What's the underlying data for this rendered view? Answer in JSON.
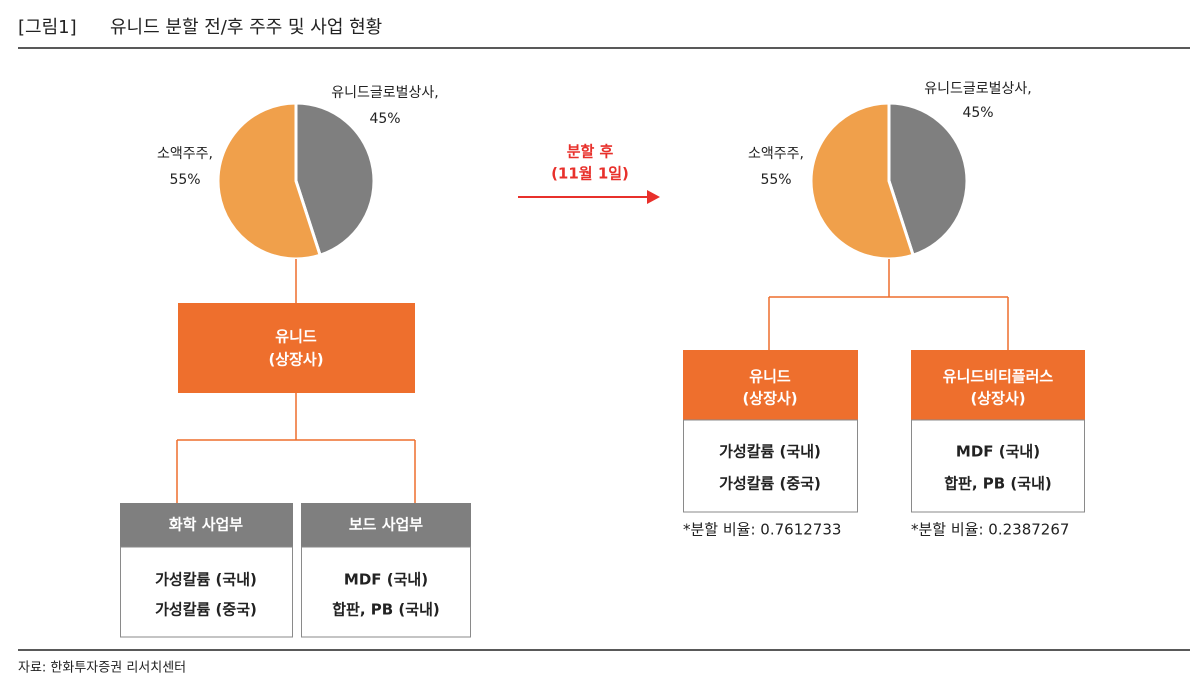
{
  "header": {
    "label": "[그림1]",
    "title": "유니드 분할 전/후 주주 및 사업 현황"
  },
  "before": {
    "pie": {
      "type": "pie",
      "names": [
        "유니드글로벌상사,",
        "소액주주,"
      ],
      "values": [
        45,
        55
      ],
      "value_labels": [
        "45%",
        "55%"
      ],
      "colors": [
        "#7f7f7f",
        "#f0a04b"
      ]
    },
    "company": {
      "name": "유니드",
      "status": "(상장사)"
    },
    "divisions": [
      {
        "name": "화학 사업부",
        "items": [
          "가성칼륨 (국내)",
          "가성칼륨 (중국)"
        ]
      },
      {
        "name": "보드 사업부",
        "items": [
          "MDF (국내)",
          "합판, PB (국내)"
        ]
      }
    ]
  },
  "arrow": {
    "label": "분할 후",
    "date": "(11월 1일)"
  },
  "after": {
    "pie": {
      "type": "pie",
      "names": [
        "유니드글로벌상사,",
        "소액주주,"
      ],
      "values": [
        45,
        55
      ],
      "value_labels": [
        "45%",
        "55%"
      ],
      "colors": [
        "#7f7f7f",
        "#f0a04b"
      ]
    },
    "companies": [
      {
        "name": "유니드",
        "status": "(상장사)",
        "items": [
          "가성칼륨 (국내)",
          "가성칼륨 (중국)"
        ],
        "ratio": "*분할 비율: 0.7612733"
      },
      {
        "name": "유니드비티플러스",
        "status": "(상장사)",
        "items": [
          "MDF (국내)",
          "합판, PB (국내)"
        ],
        "ratio": "*분할 비율: 0.2387267"
      }
    ]
  },
  "source": "자료: 한화투자증권 리서치센터"
}
